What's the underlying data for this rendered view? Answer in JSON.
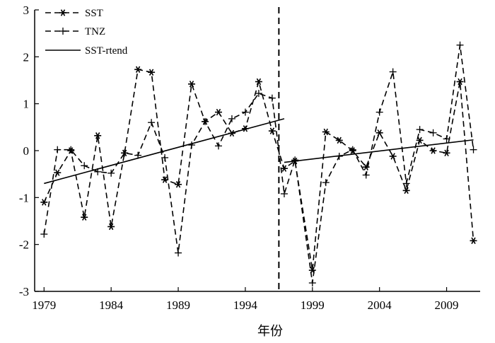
{
  "chart_data": {
    "type": "line",
    "xlabel": "年份",
    "ylabel": "",
    "xlim": [
      1978.3,
      2011.5
    ],
    "ylim": [
      -3,
      3
    ],
    "x_ticks": [
      1979,
      1984,
      1989,
      1994,
      1999,
      2004,
      2009
    ],
    "y_ticks": [
      -3,
      -2,
      -1,
      0,
      1,
      2,
      3
    ],
    "grid": false,
    "legend_position": "top-left",
    "vertical_marker_x": 1996.5,
    "series": [
      {
        "name": "SST",
        "style": "dashed",
        "marker": "asterisk",
        "color": "#000000",
        "points": [
          [
            1979,
            -1.1
          ],
          [
            1980,
            -0.47
          ],
          [
            1981,
            0.0
          ],
          [
            1982,
            -1.42
          ],
          [
            1983,
            0.32
          ],
          [
            1984,
            -1.62
          ],
          [
            1985,
            -0.05
          ],
          [
            1986,
            1.73
          ],
          [
            1987,
            1.67
          ],
          [
            1988,
            -0.62
          ],
          [
            1989,
            -0.72
          ],
          [
            1990,
            1.42
          ],
          [
            1991,
            0.62
          ],
          [
            1992,
            0.82
          ],
          [
            1993,
            0.37
          ],
          [
            1994,
            0.47
          ],
          [
            1995,
            1.47
          ],
          [
            1996,
            0.42
          ],
          [
            1996.9,
            -0.38
          ],
          [
            1997.7,
            -0.22
          ],
          [
            1999,
            -2.55
          ],
          [
            2000,
            0.4
          ],
          [
            2001,
            0.22
          ],
          [
            2002,
            0.0
          ],
          [
            2003,
            -0.35
          ],
          [
            2004,
            0.38
          ],
          [
            2005,
            -0.12
          ],
          [
            2006,
            -0.85
          ],
          [
            2007,
            0.22
          ],
          [
            2008,
            0.0
          ],
          [
            2009,
            -0.05
          ],
          [
            2010,
            1.47
          ],
          [
            2011,
            -1.92
          ]
        ]
      },
      {
        "name": "TNZ",
        "style": "dashed",
        "marker": "plus",
        "color": "#000000",
        "points": [
          [
            1979,
            -1.78
          ],
          [
            1980,
            0.02
          ],
          [
            1981,
            0.02
          ],
          [
            1982,
            -0.32
          ],
          [
            1983,
            -0.45
          ],
          [
            1984,
            -0.48
          ],
          [
            1985,
            -0.05
          ],
          [
            1986,
            -0.1
          ],
          [
            1987,
            0.6
          ],
          [
            1988,
            -0.15
          ],
          [
            1989,
            -2.18
          ],
          [
            1990,
            0.12
          ],
          [
            1991,
            0.62
          ],
          [
            1992,
            0.1
          ],
          [
            1993,
            0.68
          ],
          [
            1994,
            0.82
          ],
          [
            1995,
            1.22
          ],
          [
            1996,
            1.12
          ],
          [
            1996.9,
            -0.92
          ],
          [
            1997.7,
            -0.2
          ],
          [
            1999,
            -2.82
          ],
          [
            2000,
            -0.68
          ],
          [
            2001,
            -0.12
          ],
          [
            2002,
            0.02
          ],
          [
            2003,
            -0.52
          ],
          [
            2004,
            0.82
          ],
          [
            2005,
            1.68
          ],
          [
            2006,
            -0.7
          ],
          [
            2007,
            0.45
          ],
          [
            2008,
            0.38
          ],
          [
            2009,
            0.25
          ],
          [
            2010,
            2.25
          ],
          [
            2011,
            0.02
          ]
        ]
      },
      {
        "name": "SST-rtend",
        "style": "solid",
        "marker": "none",
        "color": "#000000",
        "segments": [
          [
            [
              1979,
              -0.7
            ],
            [
              1996.9,
              0.68
            ]
          ],
          [
            [
              1996.9,
              -0.25
            ],
            [
              2011,
              0.23
            ]
          ]
        ]
      }
    ]
  }
}
